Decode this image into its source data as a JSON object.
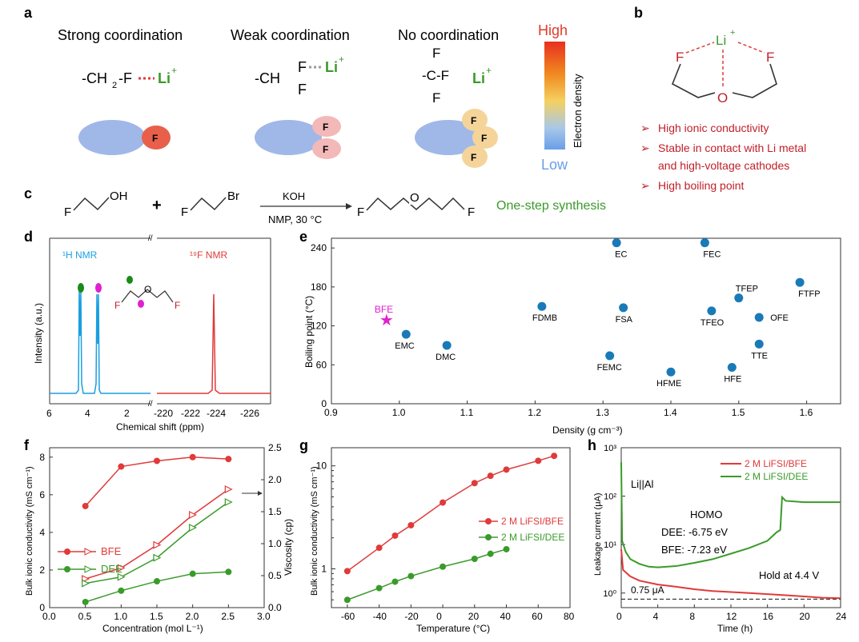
{
  "colors": {
    "red": "#e03a3a",
    "green": "#3a9a2a",
    "blue": "#1a7ab8",
    "cyan": "#1a9fe0",
    "magenta": "#e020d0",
    "darkred": "#c0202a",
    "text": "#222222",
    "ellipse": "#9fb8e8"
  },
  "panel_a": {
    "letter": "a",
    "strong": {
      "title": "Strong coordination",
      "formula": "-CH",
      "sub": "2",
      "tail": "-F",
      "li": "Li",
      "plus": "+",
      "F": "F"
    },
    "weak": {
      "title": "Weak coordination",
      "formula": "-CH",
      "F1": "F",
      "F2": "F",
      "li": "Li",
      "plus": "+",
      "ellipse_F1": "F",
      "ellipse_F2": "F"
    },
    "none": {
      "title": "No coordination",
      "F_top": "F",
      "C": "-C-F",
      "F_bot": "F",
      "li": "Li",
      "plus": "+",
      "ellipse_F": [
        "F",
        "F",
        "F"
      ]
    },
    "colorbar": {
      "high": "High",
      "low": "Low",
      "label": "Electron density"
    }
  },
  "panel_b": {
    "letter": "b",
    "li": "Li",
    "plus": "+",
    "F_left": "F",
    "F_right": "F",
    "O": "O",
    "bullets": [
      "High ionic conductivity",
      "Stable in contact with Li metal",
      "and high-voltage cathodes",
      "High boiling point"
    ]
  },
  "panel_c": {
    "letter": "c",
    "OH": "OH",
    "F1": "F",
    "Br": "Br",
    "F2": "F",
    "plus": "+",
    "reagent": "KOH",
    "conditions": "NMP, 30 °C",
    "O": "O",
    "F3": "F",
    "F4": "F",
    "F5": "F",
    "label": "One-step synthesis"
  },
  "panel_d": {
    "letter": "d",
    "h_label": "¹H NMR",
    "f_label": "¹⁹F NMR",
    "ylabel": "Intensity (a.u.)",
    "xlabel": "Chemical shift (ppm)",
    "ticks_h": [
      "6",
      "4",
      "2"
    ],
    "ticks_f": [
      "-220",
      "-222",
      "-224",
      "-226"
    ],
    "mol_F1": "F",
    "mol_O": "O",
    "mol_F2": "F",
    "break": "//"
  },
  "chart_data": [
    {
      "panel": "e",
      "type": "scatter",
      "xlabel": "Density (g cm⁻³)",
      "ylabel": "Boiling point (°C)",
      "xlim": [
        0.9,
        1.65
      ],
      "ylim": [
        0,
        255
      ],
      "xticks": [
        "0.9",
        "1.0",
        "1.1",
        "1.2",
        "1.3",
        "1.4",
        "1.5",
        "1.6"
      ],
      "yticks": [
        "0",
        "60",
        "120",
        "180",
        "240"
      ],
      "points": [
        {
          "name": "EC",
          "x": 1.32,
          "y": 248
        },
        {
          "name": "FEC",
          "x": 1.45,
          "y": 248
        },
        {
          "name": "TFEP",
          "x": 1.5,
          "y": 163
        },
        {
          "name": "FTFP",
          "x": 1.59,
          "y": 187
        },
        {
          "name": "FDMB",
          "x": 1.21,
          "y": 150
        },
        {
          "name": "FSA",
          "x": 1.33,
          "y": 148
        },
        {
          "name": "TFEO",
          "x": 1.46,
          "y": 143
        },
        {
          "name": "OFE",
          "x": 1.53,
          "y": 133
        },
        {
          "name": "EMC",
          "x": 1.01,
          "y": 107
        },
        {
          "name": "DMC",
          "x": 1.07,
          "y": 90
        },
        {
          "name": "TTE",
          "x": 1.53,
          "y": 92
        },
        {
          "name": "FEMC",
          "x": 1.31,
          "y": 74
        },
        {
          "name": "HFME",
          "x": 1.4,
          "y": 49
        },
        {
          "name": "HFE",
          "x": 1.49,
          "y": 56
        }
      ],
      "highlight": {
        "name": "BFE",
        "x": 0.98,
        "y": 128
      }
    },
    {
      "panel": "f",
      "type": "line",
      "xlabel": "Concentration (mol L⁻¹)",
      "ylabel": "Bulk ionic conductivity (mS cm⁻¹)",
      "y2label": "Viscosity (cp)",
      "xlim": [
        0,
        3
      ],
      "ylim": [
        0,
        8.5
      ],
      "y2lim": [
        0,
        2.5
      ],
      "xticks": [
        "0.0",
        "0.5",
        "1.0",
        "1.5",
        "2.0",
        "2.5",
        "3.0"
      ],
      "yticks": [
        "0",
        "2",
        "4",
        "6",
        "8"
      ],
      "y2ticks": [
        "0.0",
        "0.5",
        "1.0",
        "1.5",
        "2.0",
        "2.5"
      ],
      "x": [
        0.5,
        1.0,
        1.5,
        2.0,
        2.5
      ],
      "series": [
        {
          "name": "BFE",
          "cond": [
            5.4,
            7.5,
            7.8,
            8.0,
            7.9
          ],
          "visc": [
            0.45,
            0.62,
            0.98,
            1.45,
            1.85
          ]
        },
        {
          "name": "DEE",
          "cond": [
            0.3,
            0.9,
            1.4,
            1.8,
            1.9
          ],
          "visc": [
            0.38,
            0.48,
            0.78,
            1.25,
            1.65
          ]
        }
      ]
    },
    {
      "panel": "g",
      "type": "line",
      "xlabel": "Temperature (°C)",
      "ylabel": "Bulk ionic conductivity (mS cm⁻¹)",
      "xlim": [
        -70,
        80
      ],
      "ylog": true,
      "ylim": [
        0.42,
        15
      ],
      "xticks": [
        "-60",
        "-40",
        "-20",
        "0",
        "20",
        "40",
        "60",
        "80"
      ],
      "yticks": [
        "1",
        "10"
      ],
      "series": [
        {
          "name": "2 M LiFSI/BFE",
          "x": [
            -60,
            -40,
            -30,
            -20,
            0,
            20,
            30,
            40,
            60,
            70
          ],
          "y": [
            0.95,
            1.6,
            2.1,
            2.65,
            4.4,
            6.8,
            8.0,
            9.2,
            11.2,
            12.5
          ]
        },
        {
          "name": "2 M LiFSI/DEE",
          "x": [
            -60,
            -40,
            -30,
            -20,
            0,
            20,
            30,
            40
          ],
          "y": [
            0.5,
            0.65,
            0.75,
            0.85,
            1.05,
            1.25,
            1.4,
            1.55
          ]
        }
      ]
    },
    {
      "panel": "h",
      "type": "line",
      "xlabel": "Time (h)",
      "ylabel": "Leakage current (μA)",
      "xlim": [
        0,
        24
      ],
      "ylog": true,
      "ylim": [
        0.5,
        1000
      ],
      "xticks": [
        "0",
        "4",
        "8",
        "12",
        "16",
        "20",
        "24"
      ],
      "yticks": [
        "10⁰",
        "10¹",
        "10²",
        "10³"
      ],
      "cell": "Li||Al",
      "homo": "HOMO",
      "dee": "DEE: -6.75 eV",
      "bfe": "BFE: -7.23 eV",
      "hold": "Hold at 4.4 V",
      "ref": "0.75 μA",
      "series": [
        {
          "name": "2 M LiFSI/BFE",
          "x": [
            0,
            0.2,
            1,
            2,
            4,
            6,
            8,
            10,
            12,
            14,
            16,
            18,
            20,
            22,
            24
          ],
          "y": [
            8,
            3,
            2.2,
            1.8,
            1.5,
            1.35,
            1.2,
            1.1,
            1.05,
            1.0,
            0.95,
            0.9,
            0.85,
            0.8,
            0.78
          ]
        },
        {
          "name": "2 M LiFSI/DEE",
          "x": [
            0,
            0.1,
            0.5,
            1,
            2,
            3,
            4,
            6,
            8,
            10,
            12,
            14,
            16,
            17,
            17.4,
            17.6,
            18,
            20,
            22,
            24
          ],
          "y": [
            500,
            12,
            7,
            5,
            4,
            3.5,
            3.4,
            3.6,
            4.2,
            5,
            6.5,
            8.5,
            12,
            18,
            20,
            95,
            80,
            75,
            75,
            75
          ]
        }
      ]
    }
  ]
}
